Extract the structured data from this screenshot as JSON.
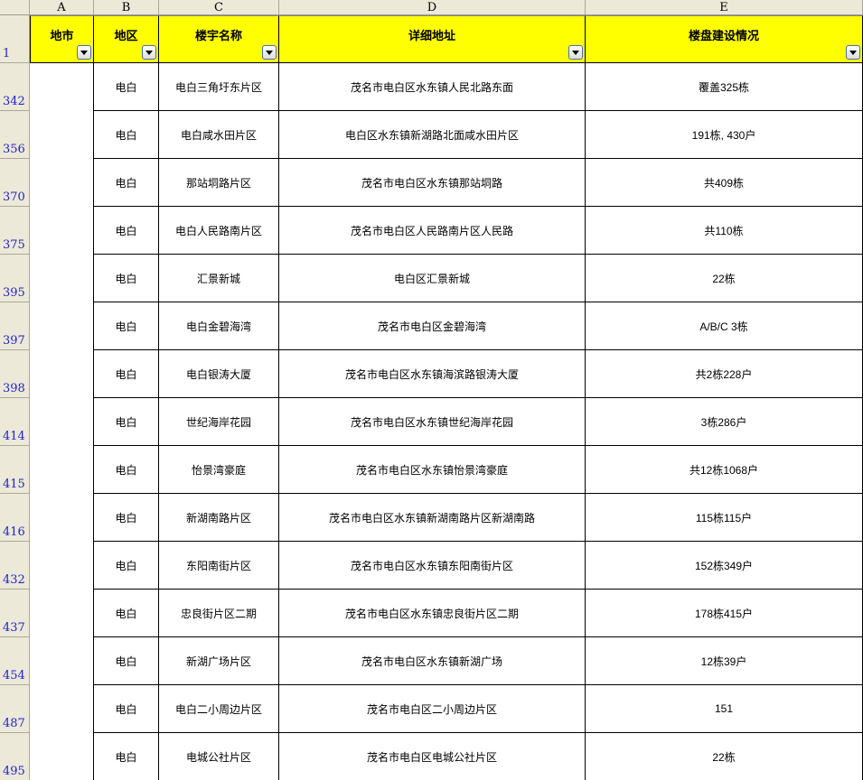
{
  "sheet": {
    "column_letters": [
      "A",
      "B",
      "C",
      "D",
      "E"
    ],
    "first_row_number": "1",
    "header": {
      "city": "地市",
      "district": "地区",
      "building": "楼宇名称",
      "address": "详细地址",
      "status": "楼盘建设情况"
    },
    "rows": [
      {
        "number": "342",
        "city": "",
        "district": "电白",
        "name": "电白三角圩东片区",
        "address": "茂名市电白区水东镇人民北路东面",
        "status": "覆盖325栋"
      },
      {
        "number": "356",
        "city": "",
        "district": "电白",
        "name": "电白咸水田片区",
        "address": "电白区水东镇新湖路北面咸水田片区",
        "status": "191栋, 430户"
      },
      {
        "number": "370",
        "city": "",
        "district": "电白",
        "name": "那站垌路片区",
        "address": "茂名市电白区水东镇那站垌路",
        "status": "共409栋"
      },
      {
        "number": "375",
        "city": "",
        "district": "电白",
        "name": "电白人民路南片区",
        "address": "茂名市电白区人民路南片区人民路",
        "status": "共110栋"
      },
      {
        "number": "395",
        "city": "",
        "district": "电白",
        "name": "汇景新城",
        "address": "电白区汇景新城",
        "status": "22栋"
      },
      {
        "number": "397",
        "city": "",
        "district": "电白",
        "name": "电白金碧海湾",
        "address": "茂名市电白区金碧海湾",
        "status": "A/B/C 3栋"
      },
      {
        "number": "398",
        "city": "",
        "district": "电白",
        "name": "电白银涛大厦",
        "address": "茂名市电白区水东镇海滨路银涛大厦",
        "status": "共2栋228户"
      },
      {
        "number": "414",
        "city": "",
        "district": "电白",
        "name": "世纪海岸花园",
        "address": "茂名市电白区水东镇世纪海岸花园",
        "status": "3栋286户"
      },
      {
        "number": "415",
        "city": "",
        "district": "电白",
        "name": "怡景湾豪庭",
        "address": "茂名市电白区水东镇怡景湾豪庭",
        "status": "共12栋1068户"
      },
      {
        "number": "416",
        "city": "",
        "district": "电白",
        "name": "新湖南路片区",
        "address": "茂名市电白区水东镇新湖南路片区新湖南路",
        "status": "115栋115户"
      },
      {
        "number": "432",
        "city": "",
        "district": "电白",
        "name": "东阳南街片区",
        "address": "茂名市电白区水东镇东阳南街片区",
        "status": "152栋349户"
      },
      {
        "number": "437",
        "city": "",
        "district": "电白",
        "name": "忠良街片区二期",
        "address": "茂名市电白区水东镇忠良街片区二期",
        "status": "178栋415户"
      },
      {
        "number": "454",
        "city": "",
        "district": "电白",
        "name": "新湖广场片区",
        "address": "茂名市电白区水东镇新湖广场",
        "status": "12栋39户"
      },
      {
        "number": "487",
        "city": "",
        "district": "电白",
        "name": "电白二小周边片区",
        "address": "茂名市电白区二小周边片区",
        "status": "151"
      },
      {
        "number": "495",
        "city": "",
        "district": "电白",
        "name": "电城公社片区",
        "address": "茂名市电白区电城公社片区",
        "status": "22栋"
      }
    ]
  },
  "colors": {
    "header_bg": "#FFFF00",
    "frame_bg": "#ECE9D8",
    "row_number_text": "#2222CC",
    "grid_border": "#000000",
    "frame_border": "#ACA899",
    "filter_button_border": "#4A6EB8"
  }
}
